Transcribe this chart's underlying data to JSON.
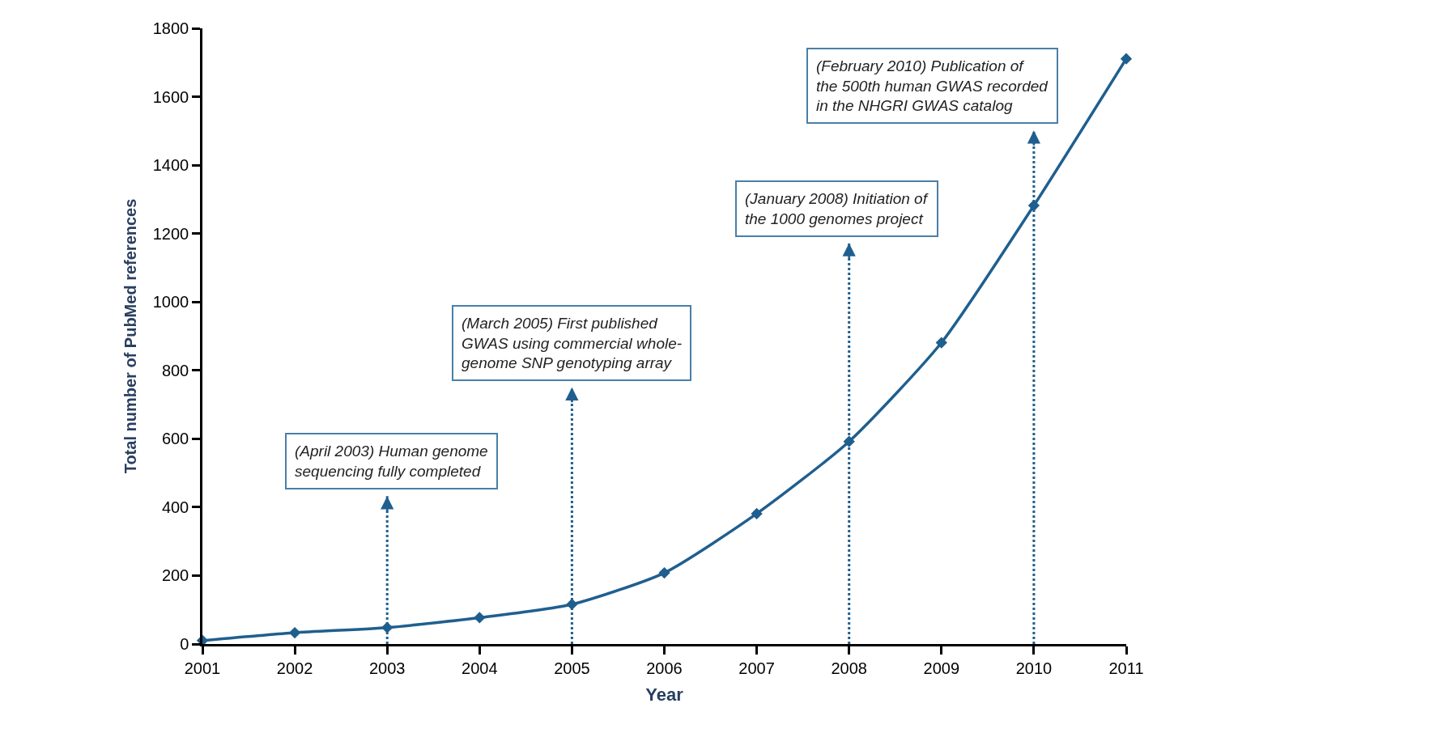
{
  "chart_data": {
    "type": "line",
    "xlabel": "Year",
    "ylabel": "Total number of PubMed references",
    "x": [
      2001,
      2002,
      2003,
      2004,
      2005,
      2006,
      2007,
      2008,
      2009,
      2010,
      2011
    ],
    "series": [
      {
        "color": "#1f5f8f",
        "values": [
          10,
          33,
          48,
          77,
          116,
          208,
          381,
          592,
          881,
          1282,
          1711
        ]
      }
    ],
    "xlim": [
      2001,
      2011
    ],
    "xticks": [
      2001,
      2002,
      2003,
      2004,
      2005,
      2006,
      2007,
      2008,
      2009,
      2010,
      2011
    ],
    "ylim": [
      0,
      1800
    ],
    "yticks": [
      0,
      200,
      400,
      600,
      800,
      1000,
      1200,
      1400,
      1600,
      1800
    ],
    "marker": "diamond",
    "line_style": "solid",
    "ref_lines": [
      {
        "axis": "x",
        "value": 2003,
        "label": "(April 2003) Human genome\nsequencing fully completed",
        "color": "#1f5f8f",
        "line_style": "dotted"
      },
      {
        "axis": "x",
        "value": 2005,
        "label": "(March 2005) First published\nGWAS using commercial whole-\ngenome SNP genotyping array",
        "color": "#1f5f8f",
        "line_style": "dotted"
      },
      {
        "axis": "x",
        "value": 2008,
        "label": "(January 2008) Initiation of\nthe 1000 genomes project",
        "color": "#1f5f8f",
        "line_style": "dotted"
      },
      {
        "axis": "x",
        "value": 2010,
        "label": "(February 2010) Publication of\nthe 500th human GWAS recorded\nin the NHGRI GWAS catalog",
        "color": "#1f5f8f",
        "line_style": "dotted"
      }
    ]
  }
}
